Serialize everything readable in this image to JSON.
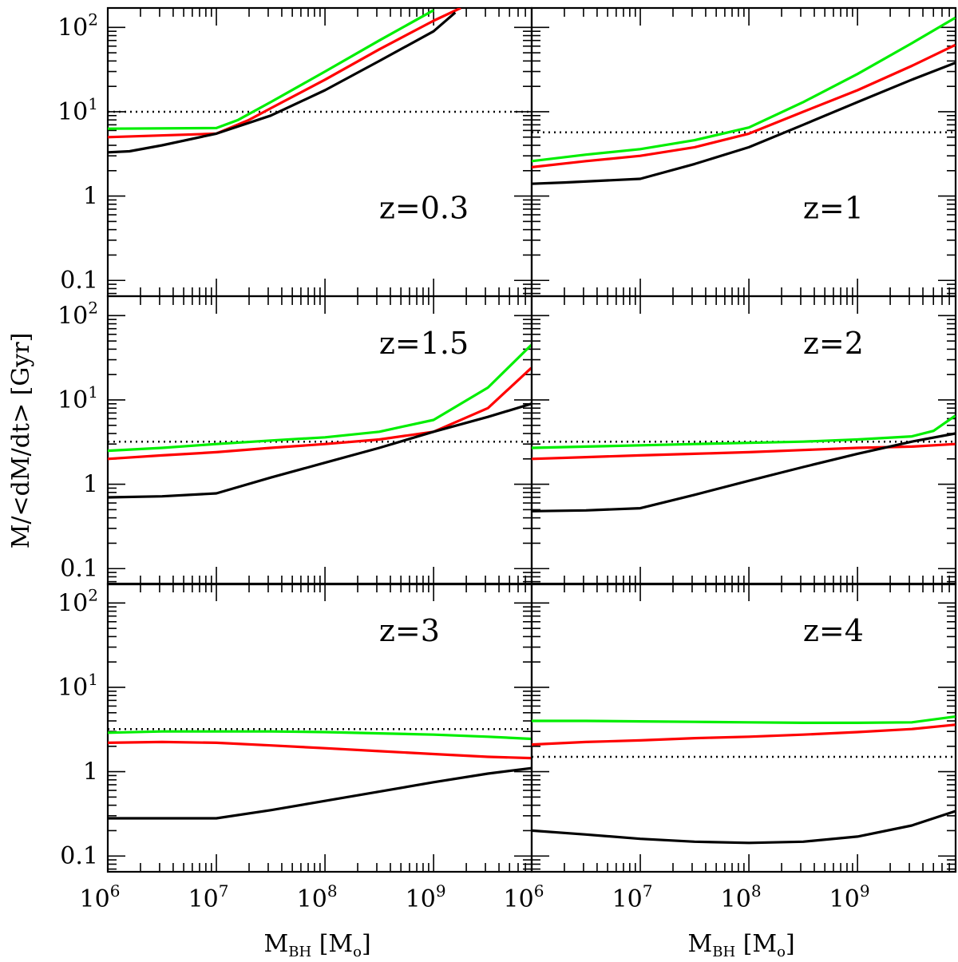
{
  "chart_data": {
    "type": "line",
    "layout": "3 rows x 2 columns, shared axes",
    "ylabel": "M/<dM/dt> [Gyr]",
    "xlabel": {
      "main": "M",
      "sub": "BH",
      "unit_open": " [M",
      "unit_sub": "o",
      "unit_close": "]"
    },
    "xscale": "log",
    "yscale": "log",
    "xlim": [
      1000000,
      8000000000
    ],
    "ylim": [
      0.065,
      170
    ],
    "xticks": [
      {
        "value": 1000000,
        "base": "10",
        "exp": "6"
      },
      {
        "value": 10000000,
        "base": "10",
        "exp": "7"
      },
      {
        "value": 100000000,
        "base": "10",
        "exp": "8"
      },
      {
        "value": 1000000000,
        "base": "10",
        "exp": "9"
      }
    ],
    "yticks": [
      {
        "value": 0.1,
        "text": "0.1"
      },
      {
        "value": 1,
        "text": "1"
      },
      {
        "value": 10,
        "base": "10",
        "exp": "1"
      },
      {
        "value": 100,
        "base": "10",
        "exp": "2"
      }
    ],
    "series_styles": [
      {
        "name": "black",
        "color": "#000000"
      },
      {
        "name": "red",
        "color": "#ff0000"
      },
      {
        "name": "green",
        "color": "#00ee00"
      },
      {
        "name": "dotted",
        "color": "#000000",
        "dash": "dotted"
      }
    ],
    "panels": [
      {
        "label": "z=0.3",
        "dotted": 10,
        "series": {
          "black": [
            [
              6,
              3.3
            ],
            [
              6.2,
              3.4
            ],
            [
              6.5,
              4
            ],
            [
              7,
              5.5
            ],
            [
              7.5,
              9
            ],
            [
              8,
              18
            ],
            [
              8.5,
              40
            ],
            [
              9,
              90
            ],
            [
              9.2,
              150
            ]
          ],
          "red": [
            [
              6,
              5
            ],
            [
              7,
              5.5
            ],
            [
              7.3,
              8
            ],
            [
              7.5,
              11
            ],
            [
              8,
              24
            ],
            [
              8.5,
              55
            ],
            [
              9,
              120
            ],
            [
              9.25,
              170
            ]
          ],
          "green": [
            [
              6,
              6.3
            ],
            [
              7,
              6.4
            ],
            [
              7.2,
              8
            ],
            [
              7.5,
              13
            ],
            [
              8,
              30
            ],
            [
              8.5,
              70
            ],
            [
              9,
              160
            ]
          ]
        }
      },
      {
        "label": "z=1",
        "dotted": 5.7,
        "series": {
          "black": [
            [
              6,
              1.4
            ],
            [
              6.3,
              1.45
            ],
            [
              7,
              1.6
            ],
            [
              7.5,
              2.4
            ],
            [
              8,
              3.8
            ],
            [
              8.5,
              7
            ],
            [
              9,
              13
            ],
            [
              9.5,
              24
            ],
            [
              9.9,
              38
            ]
          ],
          "red": [
            [
              6,
              2.2
            ],
            [
              6.5,
              2.6
            ],
            [
              7,
              3
            ],
            [
              7.5,
              3.8
            ],
            [
              8,
              5.5
            ],
            [
              8.5,
              10
            ],
            [
              9,
              18
            ],
            [
              9.5,
              35
            ],
            [
              9.9,
              62
            ]
          ],
          "green": [
            [
              6,
              2.6
            ],
            [
              6.5,
              3.1
            ],
            [
              7,
              3.6
            ],
            [
              7.5,
              4.6
            ],
            [
              8,
              6.5
            ],
            [
              8.5,
              13
            ],
            [
              9,
              28
            ],
            [
              9.5,
              65
            ],
            [
              9.9,
              130
            ]
          ]
        }
      },
      {
        "label": "z=1.5",
        "dotted": 3.2,
        "series": {
          "black": [
            [
              6,
              0.7
            ],
            [
              6.5,
              0.72
            ],
            [
              7,
              0.78
            ],
            [
              7.5,
              1.2
            ],
            [
              8,
              1.8
            ],
            [
              8.5,
              2.7
            ],
            [
              9,
              4.2
            ],
            [
              9.5,
              6.3
            ],
            [
              9.9,
              9
            ]
          ],
          "red": [
            [
              6,
              2
            ],
            [
              6.5,
              2.2
            ],
            [
              7,
              2.4
            ],
            [
              7.5,
              2.7
            ],
            [
              8,
              3
            ],
            [
              8.5,
              3.4
            ],
            [
              9,
              4.2
            ],
            [
              9.5,
              8
            ],
            [
              9.9,
              24
            ]
          ],
          "green": [
            [
              6,
              2.5
            ],
            [
              6.5,
              2.7
            ],
            [
              7,
              3
            ],
            [
              7.5,
              3.3
            ],
            [
              8,
              3.6
            ],
            [
              8.5,
              4.2
            ],
            [
              9,
              5.8
            ],
            [
              9.5,
              14
            ],
            [
              9.9,
              45
            ]
          ]
        }
      },
      {
        "label": "z=2",
        "dotted": 3.2,
        "series": {
          "black": [
            [
              6,
              0.48
            ],
            [
              6.5,
              0.49
            ],
            [
              7,
              0.52
            ],
            [
              7.5,
              0.75
            ],
            [
              8,
              1.1
            ],
            [
              8.5,
              1.6
            ],
            [
              9,
              2.3
            ],
            [
              9.5,
              3.2
            ],
            [
              9.9,
              4
            ]
          ],
          "red": [
            [
              6,
              2
            ],
            [
              6.5,
              2.1
            ],
            [
              7,
              2.2
            ],
            [
              7.5,
              2.3
            ],
            [
              8,
              2.4
            ],
            [
              8.5,
              2.55
            ],
            [
              9,
              2.7
            ],
            [
              9.5,
              2.8
            ],
            [
              9.9,
              3
            ]
          ],
          "green": [
            [
              6,
              2.7
            ],
            [
              6.5,
              2.8
            ],
            [
              7,
              2.9
            ],
            [
              7.5,
              3
            ],
            [
              8,
              3.1
            ],
            [
              8.5,
              3.2
            ],
            [
              9,
              3.4
            ],
            [
              9.5,
              3.7
            ],
            [
              9.7,
              4.3
            ],
            [
              9.9,
              6.5
            ]
          ]
        }
      },
      {
        "label": "z=3",
        "dotted": 3.2,
        "series": {
          "black": [
            [
              6,
              0.28
            ],
            [
              6.5,
              0.28
            ],
            [
              7,
              0.28
            ],
            [
              7.5,
              0.35
            ],
            [
              8,
              0.45
            ],
            [
              8.5,
              0.58
            ],
            [
              9,
              0.75
            ],
            [
              9.5,
              0.95
            ],
            [
              9.9,
              1.1
            ]
          ],
          "red": [
            [
              6,
              2.2
            ],
            [
              6.5,
              2.25
            ],
            [
              7,
              2.2
            ],
            [
              7.5,
              2.05
            ],
            [
              8,
              1.9
            ],
            [
              8.5,
              1.75
            ],
            [
              9,
              1.62
            ],
            [
              9.5,
              1.5
            ],
            [
              9.9,
              1.45
            ]
          ],
          "green": [
            [
              6,
              2.9
            ],
            [
              6.5,
              3
            ],
            [
              7,
              3
            ],
            [
              7.5,
              3
            ],
            [
              8,
              2.95
            ],
            [
              8.5,
              2.85
            ],
            [
              9,
              2.75
            ],
            [
              9.5,
              2.6
            ],
            [
              9.9,
              2.45
            ]
          ]
        }
      },
      {
        "label": "z=4",
        "dotted": 1.5,
        "series": {
          "black": [
            [
              6,
              0.2
            ],
            [
              6.5,
              0.18
            ],
            [
              7,
              0.16
            ],
            [
              7.5,
              0.148
            ],
            [
              8,
              0.143
            ],
            [
              8.5,
              0.148
            ],
            [
              9,
              0.17
            ],
            [
              9.5,
              0.23
            ],
            [
              9.9,
              0.34
            ]
          ],
          "red": [
            [
              6,
              2.1
            ],
            [
              6.5,
              2.25
            ],
            [
              7,
              2.35
            ],
            [
              7.5,
              2.5
            ],
            [
              8,
              2.6
            ],
            [
              8.5,
              2.75
            ],
            [
              9,
              2.95
            ],
            [
              9.5,
              3.2
            ],
            [
              9.9,
              3.6
            ]
          ],
          "green": [
            [
              6,
              4
            ],
            [
              6.5,
              4
            ],
            [
              7,
              3.95
            ],
            [
              7.5,
              3.9
            ],
            [
              8,
              3.85
            ],
            [
              8.5,
              3.8
            ],
            [
              9,
              3.8
            ],
            [
              9.5,
              3.85
            ],
            [
              9.9,
              4.5
            ]
          ]
        }
      }
    ]
  }
}
